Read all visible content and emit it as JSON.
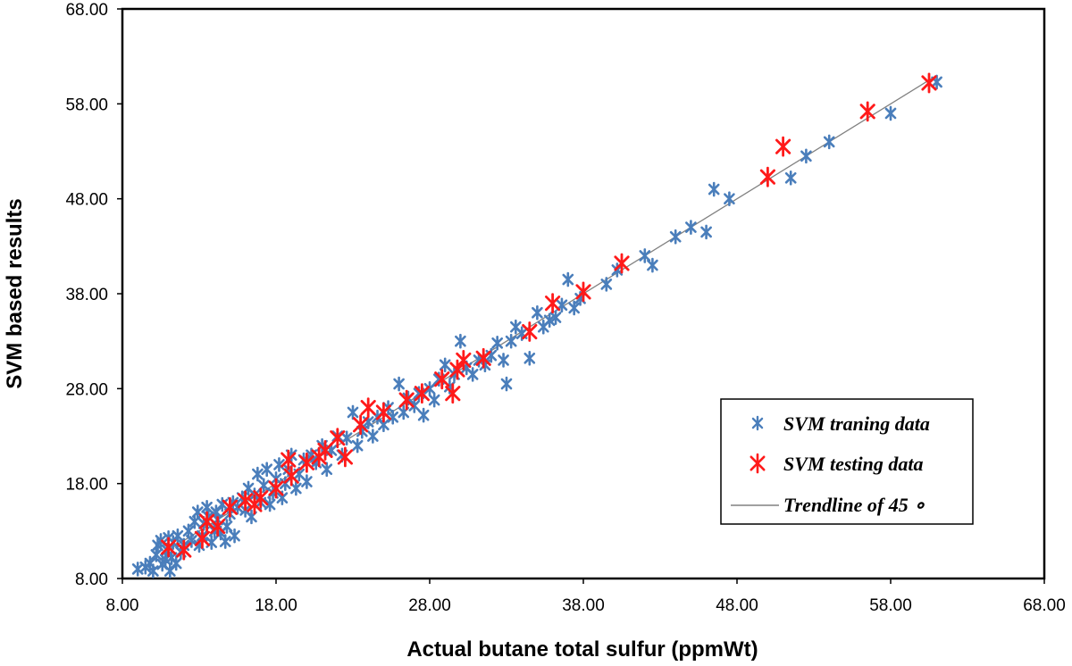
{
  "chart_data": {
    "type": "scatter",
    "xlabel": "Actual butane total sulfur (ppmWt)",
    "ylabel": "SVM based results",
    "xlim": [
      8,
      68
    ],
    "ylim": [
      8,
      68
    ],
    "x_ticks": [
      "8.00",
      "18.00",
      "28.00",
      "38.00",
      "48.00",
      "58.00",
      "68.00"
    ],
    "y_ticks": [
      "8.00",
      "18.00",
      "28.00",
      "38.00",
      "48.00",
      "58.00",
      "68.00"
    ],
    "grid": false,
    "legend_position": "bottom-right",
    "series": [
      {
        "name": "SVM traning data",
        "color": "#4a7ebb",
        "marker": "asterisk",
        "points": [
          [
            9.0,
            9.0
          ],
          [
            9.5,
            9.2
          ],
          [
            9.8,
            9.6
          ],
          [
            10.0,
            8.8
          ],
          [
            10.2,
            10.5
          ],
          [
            10.3,
            11.5
          ],
          [
            10.5,
            12.0
          ],
          [
            10.6,
            9.5
          ],
          [
            10.8,
            10.0
          ],
          [
            10.9,
            11.0
          ],
          [
            11.0,
            12.3
          ],
          [
            11.1,
            8.8
          ],
          [
            11.2,
            10.2
          ],
          [
            11.3,
            11.8
          ],
          [
            11.5,
            9.6
          ],
          [
            11.6,
            12.5
          ],
          [
            11.8,
            10.8
          ],
          [
            12.0,
            11.5
          ],
          [
            12.3,
            13.0
          ],
          [
            12.5,
            12.0
          ],
          [
            12.7,
            14.0
          ],
          [
            12.9,
            15.0
          ],
          [
            13.0,
            11.5
          ],
          [
            13.2,
            12.5
          ],
          [
            13.3,
            13.8
          ],
          [
            13.5,
            15.5
          ],
          [
            13.6,
            14.5
          ],
          [
            13.8,
            11.8
          ],
          [
            14.0,
            13.0
          ],
          [
            14.1,
            15.0
          ],
          [
            14.2,
            14.2
          ],
          [
            14.4,
            12.8
          ],
          [
            14.5,
            15.8
          ],
          [
            14.7,
            11.9
          ],
          [
            14.8,
            13.5
          ],
          [
            15.0,
            14.8
          ],
          [
            15.2,
            16.0
          ],
          [
            15.3,
            12.5
          ],
          [
            15.5,
            15.5
          ],
          [
            15.8,
            16.5
          ],
          [
            16.0,
            15.2
          ],
          [
            16.2,
            17.5
          ],
          [
            16.4,
            14.5
          ],
          [
            16.6,
            16.8
          ],
          [
            16.8,
            19.0
          ],
          [
            17.0,
            16.0
          ],
          [
            17.2,
            17.8
          ],
          [
            17.4,
            19.5
          ],
          [
            17.6,
            15.8
          ],
          [
            17.8,
            17.0
          ],
          [
            18.0,
            18.5
          ],
          [
            18.2,
            20.0
          ],
          [
            18.4,
            16.5
          ],
          [
            18.6,
            18.0
          ],
          [
            18.8,
            19.5
          ],
          [
            19.0,
            21.0
          ],
          [
            19.3,
            17.5
          ],
          [
            19.5,
            19.0
          ],
          [
            19.8,
            20.5
          ],
          [
            20.0,
            18.2
          ],
          [
            20.3,
            21.0
          ],
          [
            20.6,
            20.2
          ],
          [
            21.0,
            22.0
          ],
          [
            21.3,
            19.5
          ],
          [
            21.6,
            21.5
          ],
          [
            22.0,
            23.0
          ],
          [
            22.3,
            21.0
          ],
          [
            22.6,
            22.8
          ],
          [
            23.0,
            25.5
          ],
          [
            23.3,
            22.0
          ],
          [
            23.6,
            23.5
          ],
          [
            24.0,
            24.5
          ],
          [
            24.3,
            23.0
          ],
          [
            24.6,
            25.0
          ],
          [
            25.0,
            24.2
          ],
          [
            25.3,
            26.0
          ],
          [
            25.6,
            25.0
          ],
          [
            26.0,
            28.5
          ],
          [
            26.3,
            25.5
          ],
          [
            26.6,
            27.0
          ],
          [
            27.0,
            26.2
          ],
          [
            27.3,
            27.5
          ],
          [
            27.6,
            25.2
          ],
          [
            28.0,
            28.0
          ],
          [
            28.3,
            26.8
          ],
          [
            28.6,
            29.0
          ],
          [
            29.0,
            30.5
          ],
          [
            29.3,
            28.2
          ],
          [
            29.6,
            29.5
          ],
          [
            30.0,
            33.0
          ],
          [
            30.4,
            30.2
          ],
          [
            30.8,
            29.5
          ],
          [
            31.2,
            31.0
          ],
          [
            31.6,
            30.5
          ],
          [
            32.0,
            31.5
          ],
          [
            32.4,
            32.8
          ],
          [
            32.8,
            31.0
          ],
          [
            33.0,
            28.5
          ],
          [
            33.3,
            33.0
          ],
          [
            33.6,
            34.5
          ],
          [
            34.0,
            33.8
          ],
          [
            34.5,
            31.2
          ],
          [
            35.0,
            36.0
          ],
          [
            35.4,
            34.5
          ],
          [
            35.8,
            35.2
          ],
          [
            36.2,
            35.5
          ],
          [
            36.6,
            36.8
          ],
          [
            37.0,
            39.5
          ],
          [
            37.4,
            36.5
          ],
          [
            37.8,
            37.5
          ],
          [
            39.5,
            39.0
          ],
          [
            40.2,
            40.5
          ],
          [
            42.0,
            42.0
          ],
          [
            42.5,
            41.0
          ],
          [
            44.0,
            44.0
          ],
          [
            45.0,
            45.0
          ],
          [
            46.0,
            44.5
          ],
          [
            46.5,
            49.0
          ],
          [
            47.5,
            48.0
          ],
          [
            51.5,
            50.2
          ],
          [
            52.5,
            52.5
          ],
          [
            54.0,
            54.0
          ],
          [
            58.0,
            57.0
          ],
          [
            61.0,
            60.3
          ]
        ]
      },
      {
        "name": "SVM testing data",
        "color": "#ff1a1a",
        "marker": "asterisk",
        "points": [
          [
            11.0,
            11.3
          ],
          [
            12.0,
            11.0
          ],
          [
            13.2,
            12.2
          ],
          [
            13.5,
            14.0
          ],
          [
            14.2,
            13.5
          ],
          [
            15.0,
            15.5
          ],
          [
            16.0,
            16.2
          ],
          [
            16.6,
            15.8
          ],
          [
            17.0,
            16.5
          ],
          [
            18.0,
            17.5
          ],
          [
            18.8,
            20.5
          ],
          [
            19.0,
            18.8
          ],
          [
            20.0,
            20.2
          ],
          [
            20.8,
            20.8
          ],
          [
            21.2,
            21.5
          ],
          [
            22.0,
            22.8
          ],
          [
            22.5,
            20.8
          ],
          [
            23.5,
            24.2
          ],
          [
            24.0,
            26.0
          ],
          [
            25.0,
            25.5
          ],
          [
            26.5,
            26.8
          ],
          [
            27.5,
            27.5
          ],
          [
            28.8,
            29.0
          ],
          [
            29.5,
            27.5
          ],
          [
            29.8,
            30.0
          ],
          [
            30.2,
            31.0
          ],
          [
            31.5,
            31.2
          ],
          [
            34.5,
            34.0
          ],
          [
            36.0,
            37.0
          ],
          [
            38.0,
            38.2
          ],
          [
            40.5,
            41.2
          ],
          [
            50.0,
            50.3
          ],
          [
            51.0,
            53.5
          ],
          [
            56.5,
            57.2
          ],
          [
            60.5,
            60.2
          ]
        ]
      }
    ],
    "trendline": {
      "name": "Trendline of 45 ∘",
      "color": "#808080",
      "x": [
        10.5,
        61.0
      ],
      "y": [
        10.5,
        61.0
      ]
    }
  }
}
